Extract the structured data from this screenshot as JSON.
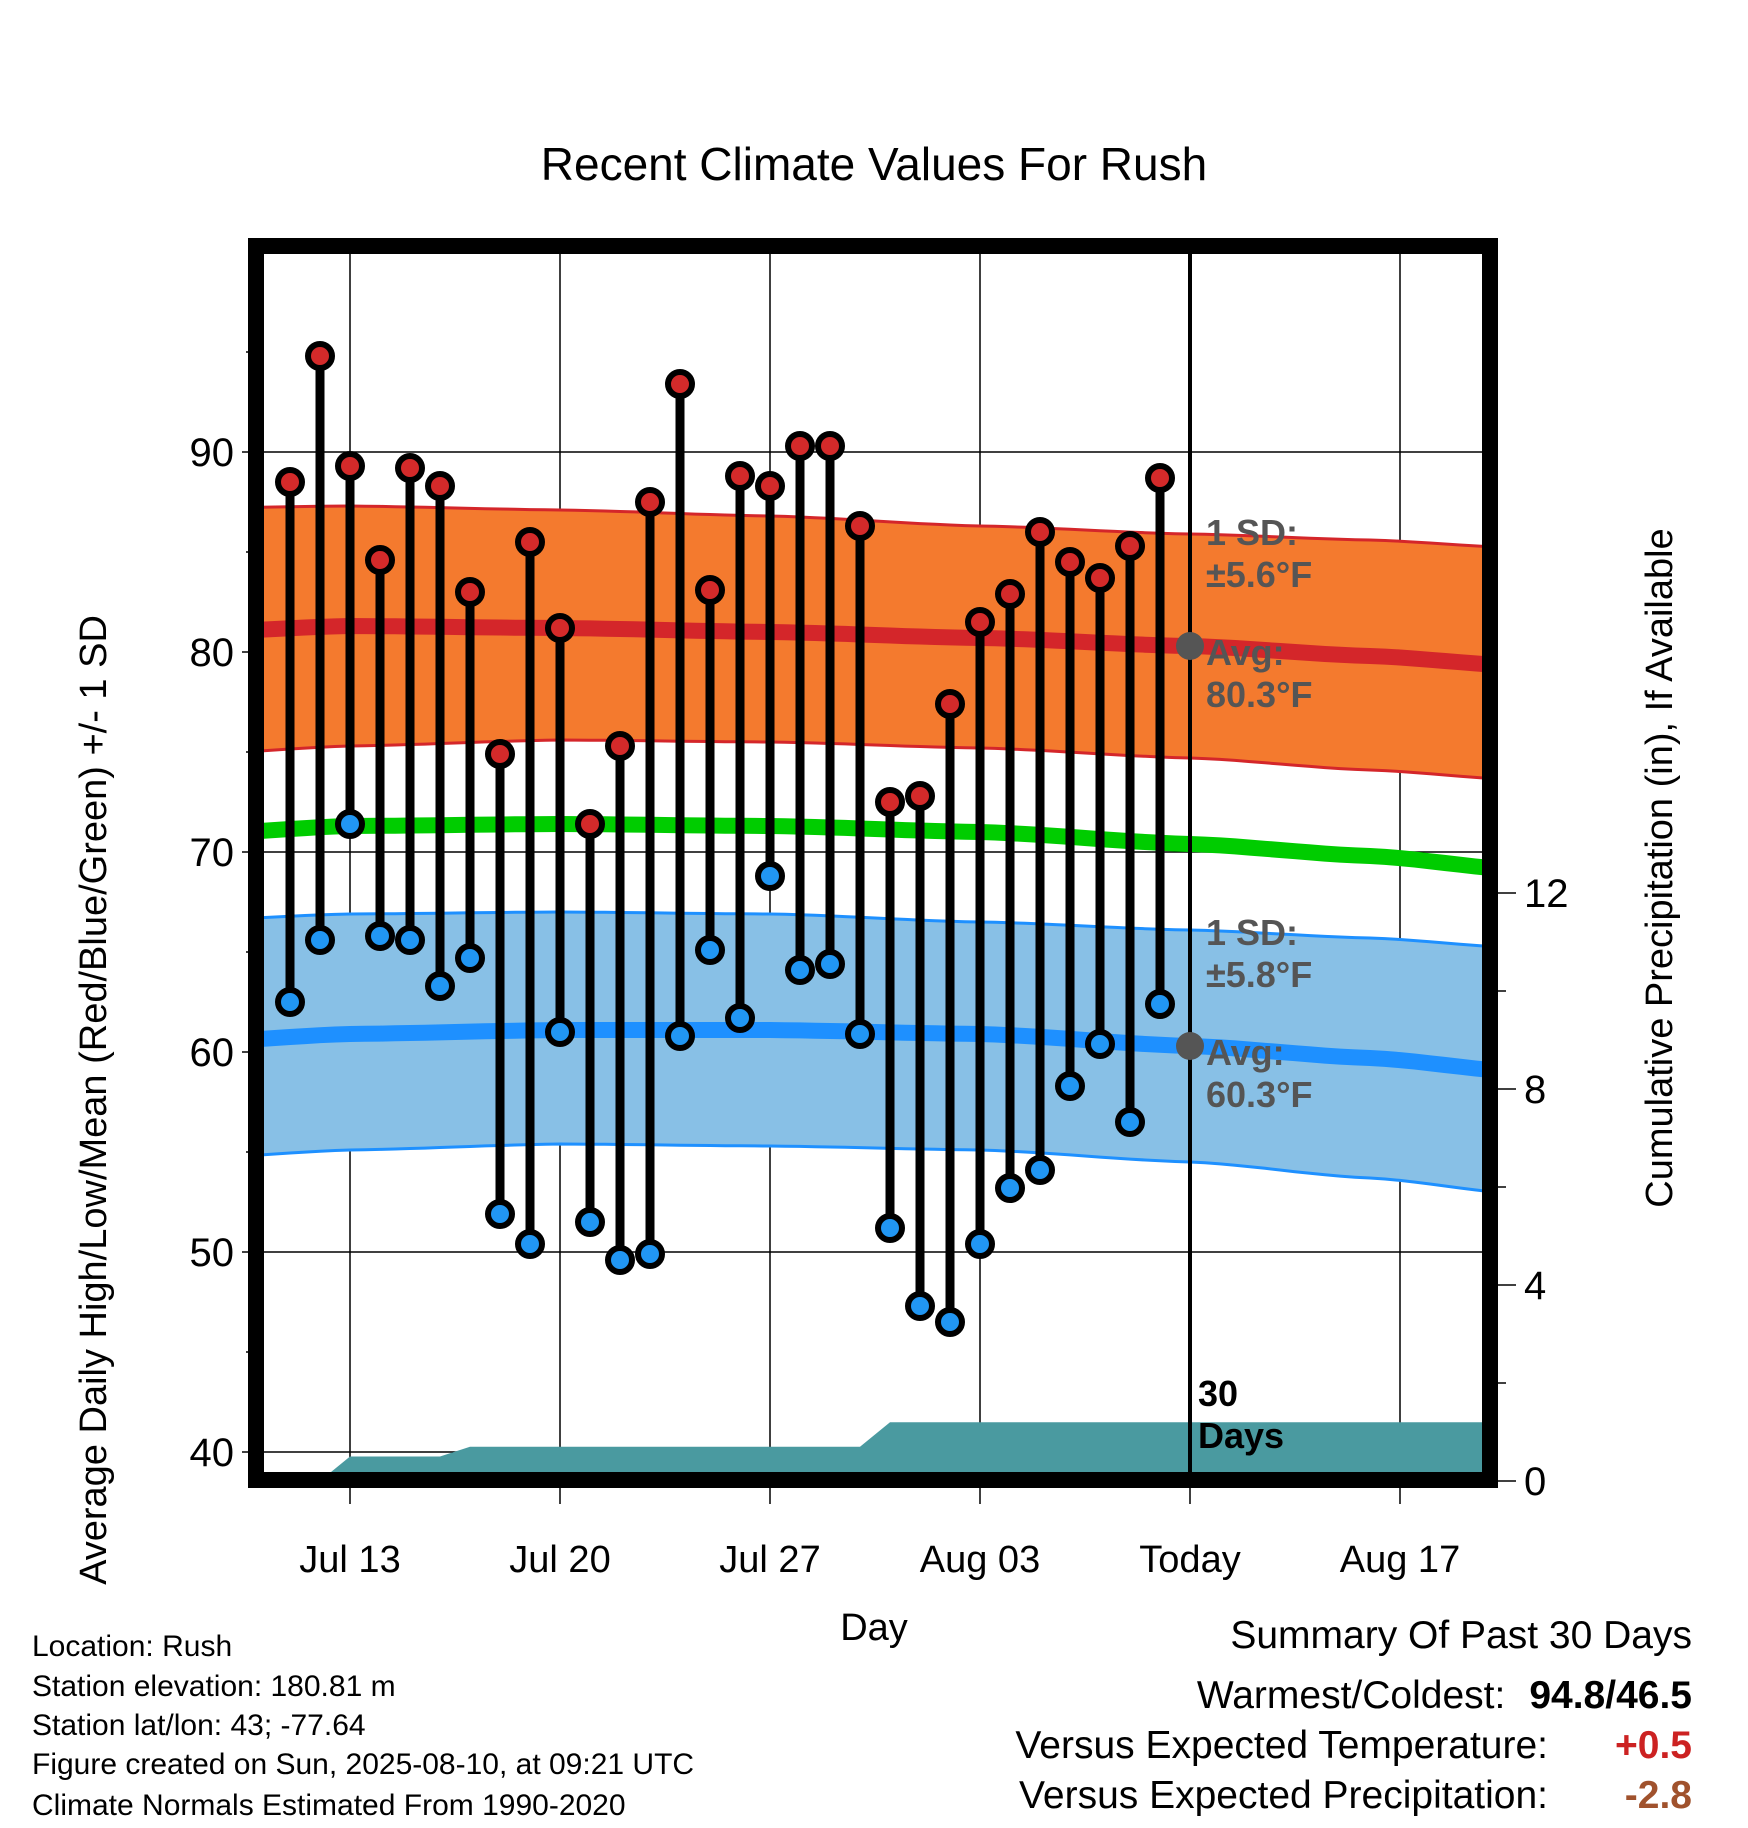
{
  "chart_data": {
    "type": "line",
    "title": "Recent Climate Values For Rush",
    "xlabel": "Day",
    "ylabel": "Average Daily High/Low/Mean (Red/Blue/Green) +/- 1 SD",
    "y2label": "Cumulative Precipitation (in), If Available",
    "ylim": [
      38.9,
      100
    ],
    "y2lim": [
      0,
      24.1
    ],
    "xlim": [
      -33.3,
      11.7
    ],
    "x_ticks": [
      {
        "x": -28,
        "label": "Jul 13"
      },
      {
        "x": -21,
        "label": "Jul 20"
      },
      {
        "x": -14,
        "label": "Jul 27"
      },
      {
        "x": -7,
        "label": "Aug 03"
      },
      {
        "x": 0,
        "label": "Today"
      },
      {
        "x": 7,
        "label": "Aug 17"
      }
    ],
    "y_ticks": [
      40,
      50,
      60,
      70,
      80,
      90
    ],
    "y2_ticks": [
      0,
      4,
      8,
      12
    ],
    "grid": true,
    "today_marker": {
      "x": 0,
      "label_top": "30",
      "label_bottom": "Days"
    },
    "daily": {
      "x": [
        -30,
        -29,
        -28,
        -27,
        -26,
        -25,
        -24,
        -23,
        -22,
        -21,
        -20,
        -19,
        -18,
        -17,
        -16,
        -15,
        -14,
        -13,
        -12,
        -11,
        -10,
        -9,
        -8,
        -7,
        -6,
        -5,
        -4,
        -3,
        -2,
        -1
      ],
      "high": [
        88.5,
        94.8,
        89.3,
        84.6,
        89.2,
        88.3,
        83.0,
        74.9,
        85.5,
        81.2,
        71.4,
        75.3,
        87.5,
        93.4,
        83.1,
        88.8,
        88.3,
        90.3,
        90.3,
        86.3,
        72.5,
        72.8,
        77.4,
        81.5,
        82.9,
        86.0,
        84.5,
        83.7,
        85.3,
        88.7
      ],
      "low": [
        62.5,
        65.6,
        71.4,
        65.8,
        65.6,
        63.3,
        64.7,
        51.9,
        50.4,
        61.0,
        51.5,
        49.6,
        49.9,
        60.8,
        65.1,
        61.7,
        68.8,
        64.1,
        64.4,
        60.9,
        51.2,
        47.3,
        46.5,
        50.4,
        53.2,
        54.1,
        58.3,
        60.4,
        56.5,
        62.4
      ]
    },
    "normals": {
      "x": [
        -33,
        -28,
        -21,
        -14,
        -7,
        0,
        6,
        11
      ],
      "high_avg": [
        81.0,
        81.3,
        81.2,
        81.0,
        80.7,
        80.3,
        79.8,
        79.3
      ],
      "high_upper": [
        87.2,
        87.3,
        87.1,
        86.8,
        86.3,
        85.9,
        85.6,
        85.2
      ],
      "high_lower": [
        74.9,
        75.3,
        75.6,
        75.5,
        75.2,
        74.7,
        74.1,
        73.6
      ],
      "mean_avg": [
        70.9,
        71.3,
        71.4,
        71.3,
        71.0,
        70.4,
        69.8,
        69.1
      ],
      "low_avg": [
        60.5,
        60.9,
        61.1,
        61.1,
        60.9,
        60.3,
        59.7,
        59.0
      ],
      "low_upper": [
        66.6,
        66.9,
        67.0,
        66.9,
        66.5,
        66.1,
        65.7,
        65.2
      ],
      "low_lower": [
        54.7,
        55.1,
        55.4,
        55.3,
        55.1,
        54.5,
        53.7,
        52.9
      ]
    },
    "precip": {
      "x": [
        -33.3,
        -29,
        -28,
        -25,
        -24,
        -14,
        -11,
        -10,
        11.7
      ],
      "cum": [
        0,
        0,
        0.5,
        0.5,
        0.7,
        0.7,
        0.7,
        1.2,
        1.2
      ]
    },
    "annotations": [
      {
        "lines": [
          "1 SD:",
          "±5.6°F"
        ]
      },
      {
        "lines": [
          "Avg:",
          "80.3°F"
        ]
      },
      {
        "lines": [
          "1 SD:",
          "±5.8°F"
        ]
      },
      {
        "lines": [
          "Avg:",
          "60.3°F"
        ]
      }
    ],
    "colors": {
      "high_band": "#f47a2e",
      "high_line": "#d4262a",
      "mean_line": "#00cc00",
      "low_band": "#88c0e6",
      "low_line": "#1e90ff",
      "precip_fill": "#4a9aa0",
      "high_dot": "#d42a2a",
      "low_dot": "#2196f3",
      "annotation": "#555555"
    }
  },
  "info": {
    "location": "Location: Rush",
    "elevation": "Station elevation: 180.81 m",
    "latlon": "Station lat/lon: 43; -77.64",
    "created": "Figure created on Sun, 2025-08-10, at 09:21 UTC",
    "normals": "Climate Normals Estimated From 1990-2020"
  },
  "summary": {
    "title": "Summary Of Past 30 Days",
    "warmest_label": "Warmest/Coldest:",
    "warmest_value": "94.8/46.5",
    "temp_label": "Versus Expected Temperature:",
    "temp_value": "+0.5",
    "temp_color": "#cc2222",
    "precip_label": "Versus Expected Precipitation:",
    "precip_value": "-2.8",
    "precip_color": "#a0522d"
  }
}
